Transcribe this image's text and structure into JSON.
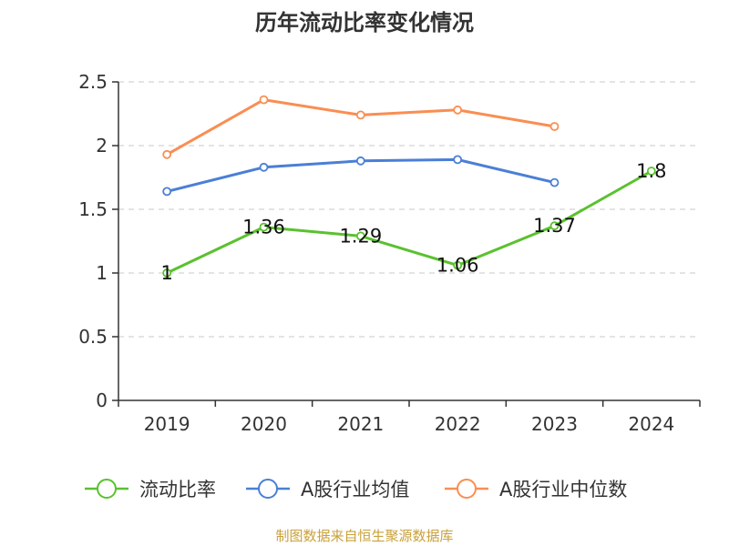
{
  "chart_data": {
    "type": "line",
    "title": "历年流动比率变化情况",
    "categories": [
      "2019",
      "2020",
      "2021",
      "2022",
      "2023",
      "2024"
    ],
    "ylim": [
      0,
      2.5
    ],
    "yticks": [
      "0",
      "0.5",
      "1",
      "1.5",
      "2",
      "2.5"
    ],
    "grid": true,
    "legend_position": "bottom",
    "series": [
      {
        "name": "流动比率",
        "color": "#5ac12f",
        "values": [
          1,
          1.36,
          1.29,
          1.06,
          1.37,
          1.8
        ],
        "labels": [
          "1",
          "1.36",
          "1.29",
          "1.06",
          "1.37",
          "1.8"
        ]
      },
      {
        "name": "A股行业均值",
        "color": "#4a7fd6",
        "values": [
          1.64,
          1.83,
          1.88,
          1.89,
          1.71,
          null
        ]
      },
      {
        "name": "A股行业中位数",
        "color": "#f98e52",
        "values": [
          1.93,
          2.36,
          2.24,
          2.28,
          2.15,
          null
        ]
      }
    ],
    "source": "制图数据来自恒生聚源数据库",
    "source_color": "#c8a13a"
  }
}
